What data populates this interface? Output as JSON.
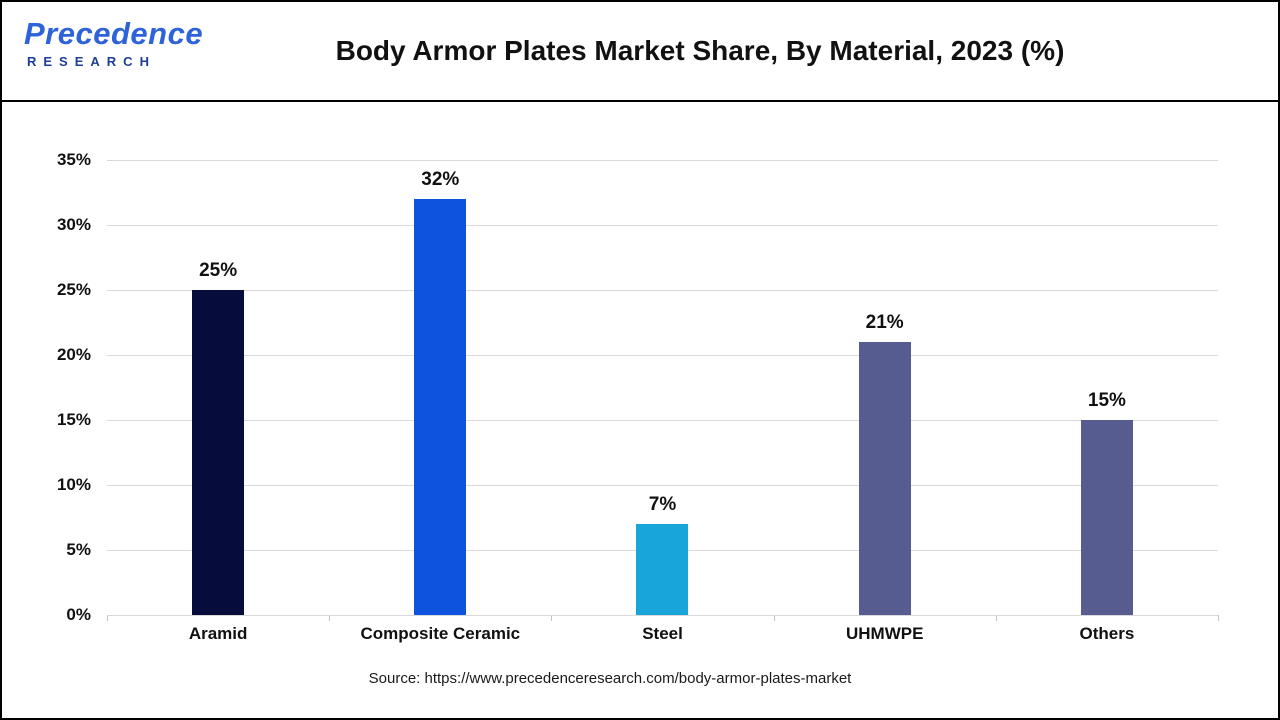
{
  "header": {
    "logo": {
      "line1": "Precedence",
      "line2": "RESEARCH"
    },
    "title": "Body Armor Plates Market Share, By Material, 2023 (%)"
  },
  "chart_data": {
    "type": "bar",
    "title": "Body Armor Plates Market Share, By Material, 2023 (%)",
    "categories": [
      "Aramid",
      "Composite Ceramic",
      "Steel",
      "UHMWPE",
      "Others"
    ],
    "values": [
      25,
      32,
      7,
      21,
      15
    ],
    "value_labels": [
      "25%",
      "32%",
      "7%",
      "21%",
      "15%"
    ],
    "colors": [
      "#060c3c",
      "#0d53dd",
      "#18a6da",
      "#565b90",
      "#565b90"
    ],
    "xlabel": "",
    "ylabel": "",
    "ylim": [
      0,
      35
    ],
    "ytick_step": 5,
    "ytick_suffix": "%",
    "grid": "horizontal",
    "legend": "none"
  },
  "footer": {
    "source": "Source: https://www.precedenceresearch.com/body-armor-plates-market"
  }
}
